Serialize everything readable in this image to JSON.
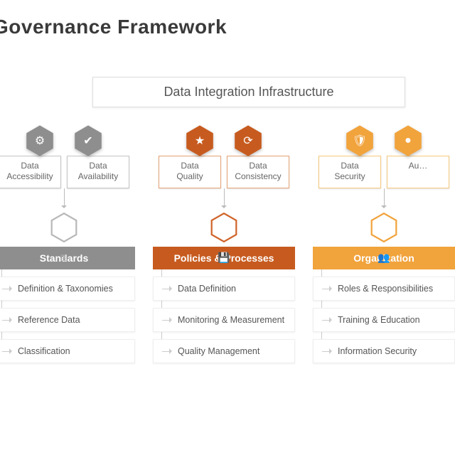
{
  "title": "Governance Framework",
  "banner": "Data Integration Infrastructure",
  "colors": {
    "gray": {
      "fill": "#8e8e8e",
      "border": "#c4c4c4",
      "outline": "#b8b8b8"
    },
    "orange": {
      "fill": "#c75b1f",
      "border": "#e5a377",
      "outline": "#d0642a"
    },
    "amber": {
      "fill": "#f1a33c",
      "border": "#f5c97f",
      "outline": "#f1a33c"
    }
  },
  "columns": [
    {
      "palette": "gray",
      "hexes": [
        {
          "label": "Data\nAccessibility",
          "glyph": "⚙"
        },
        {
          "label": "Data\nAvailability",
          "glyph": "✔"
        }
      ],
      "mid_glyph": "≣",
      "pill": "Standards",
      "bullets": [
        "Definition & Taxonomies",
        "Reference Data",
        "Classification"
      ]
    },
    {
      "palette": "orange",
      "hexes": [
        {
          "label": "Data\nQuality",
          "glyph": "★"
        },
        {
          "label": "Data\nConsistency",
          "glyph": "⟳"
        }
      ],
      "mid_glyph": "💾",
      "pill": "Policies & Processes",
      "bullets": [
        "Data Definition",
        "Monitoring & Measurement",
        "Quality Management"
      ]
    },
    {
      "palette": "amber",
      "hexes": [
        {
          "label": "Data\nSecurity",
          "glyph": "🛡"
        },
        {
          "label": "Au…",
          "glyph": "●"
        }
      ],
      "mid_glyph": "👥",
      "pill": "Organization",
      "bullets": [
        "Roles & Responsibilities",
        "Training & Education",
        "Information Security"
      ]
    }
  ],
  "style": {
    "title_fontsize": 28,
    "banner_fontsize": 18,
    "card_fontsize": 12,
    "pill_fontsize": 14,
    "bullet_fontsize": 12.5,
    "background": "#ffffff"
  }
}
